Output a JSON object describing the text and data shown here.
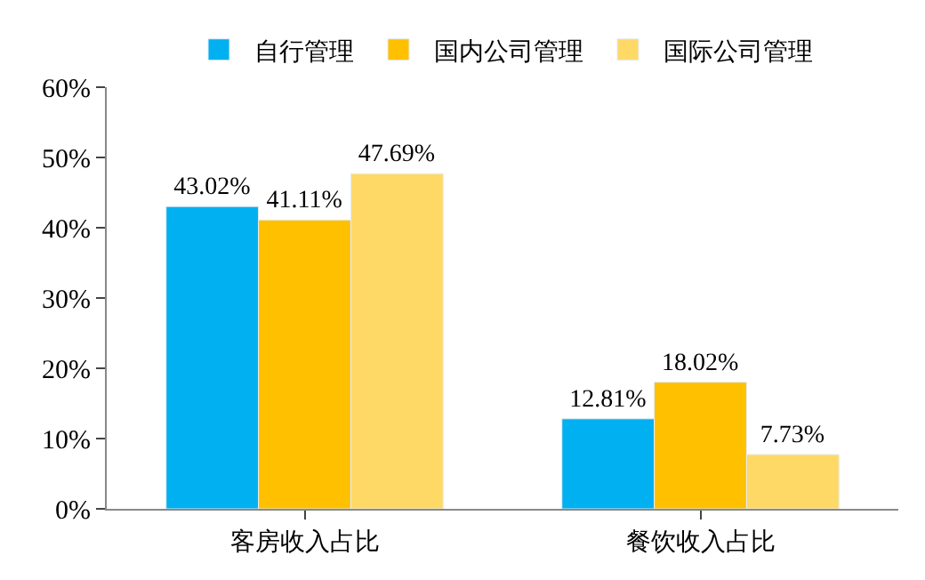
{
  "chart_data": {
    "type": "bar",
    "categories": [
      "客房收入占比",
      "餐饮收入占比"
    ],
    "series": [
      {
        "name": "自行管理",
        "color": "#00b0f0",
        "values": [
          43.02,
          12.81
        ],
        "value_labels": [
          "43.02%",
          "12.81%"
        ]
      },
      {
        "name": "国内公司管理",
        "color": "#ffc000",
        "values": [
          41.11,
          18.02
        ],
        "value_labels": [
          "41.11%",
          "18.02%"
        ]
      },
      {
        "name": "国际公司管理",
        "color": "#ffd966",
        "values": [
          47.69,
          7.73
        ],
        "value_labels": [
          "47.69%",
          "7.73%"
        ]
      }
    ],
    "ylim": [
      0,
      60
    ],
    "yticks": [
      {
        "value": 0,
        "label": "0%"
      },
      {
        "value": 10,
        "label": "10%"
      },
      {
        "value": 20,
        "label": "20%"
      },
      {
        "value": 30,
        "label": "30%"
      },
      {
        "value": 40,
        "label": "40%"
      },
      {
        "value": 50,
        "label": "50%"
      },
      {
        "value": 60,
        "label": "60%"
      }
    ],
    "legend": "top"
  }
}
